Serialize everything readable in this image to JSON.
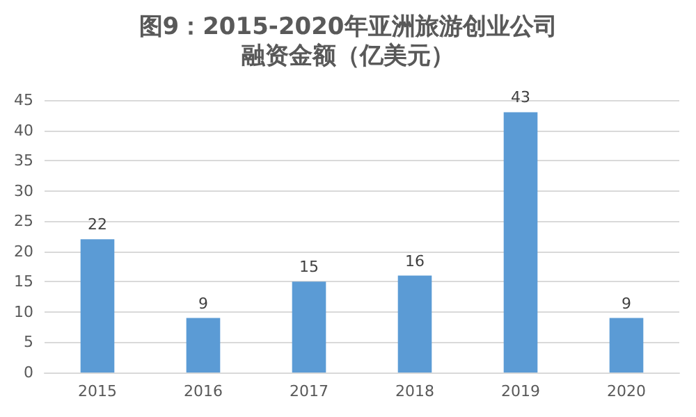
{
  "chart_data": {
    "type": "bar",
    "title": "图9：2015-2020年亚洲旅游创业公司",
    "subtitle": "融资金额（亿美元）",
    "categories": [
      "2015",
      "2016",
      "2017",
      "2018",
      "2019",
      "2020"
    ],
    "values": [
      22,
      9,
      15,
      16,
      43,
      9
    ],
    "color": "#5b9bd5",
    "ylim": [
      0,
      45
    ],
    "yticks": [
      0,
      5,
      10,
      15,
      20,
      25,
      30,
      35,
      40,
      45
    ],
    "grid": "y",
    "data_labels": true
  }
}
